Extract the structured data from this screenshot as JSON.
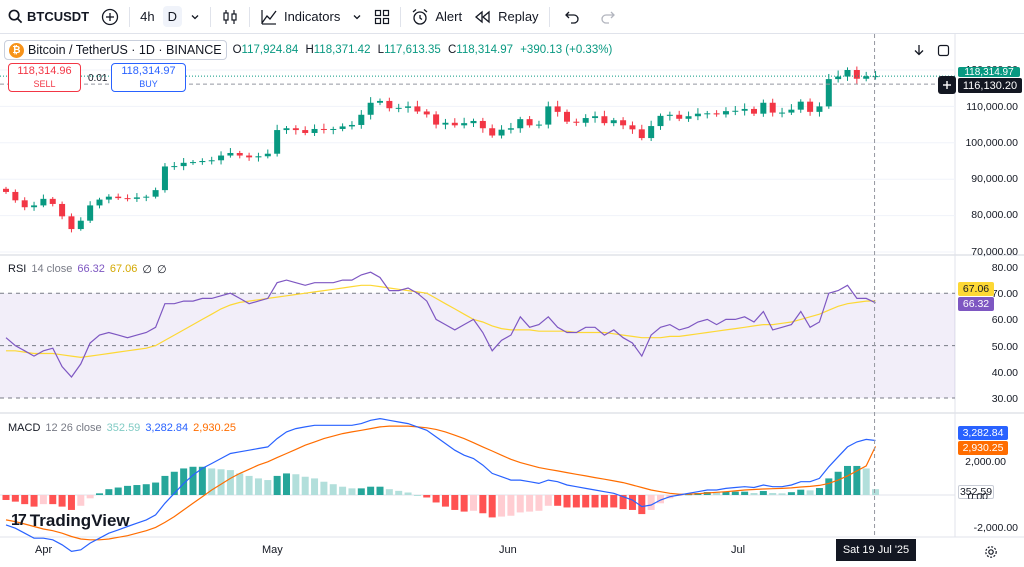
{
  "toolbar": {
    "symbol": "BTCUSDT",
    "interval": "4h",
    "interval_active": "D",
    "indicators_label": "Indicators",
    "alert_label": "Alert",
    "replay_label": "Replay"
  },
  "legend": {
    "title": "Bitcoin / TetherUS · 1D · BINANCE",
    "open_key": "O",
    "open": "117,924.84",
    "high_key": "H",
    "high": "118,371.42",
    "low_key": "L",
    "low": "117,613.35",
    "close_key": "C",
    "close": "118,314.97",
    "change": "+390.13 (+0.33%)"
  },
  "trade": {
    "sell_price": "118,314.96",
    "sell_label": "SELL",
    "spread": "0.01",
    "buy_price": "118,314.97",
    "buy_label": "BUY"
  },
  "price_axis": {
    "labels": [
      "120,000.00",
      "110,000.00",
      "100,000.00",
      "90,000.00",
      "80,000.00",
      "70,000.00"
    ],
    "current_price": "118,314.97",
    "crosshair_price": "116,130.20"
  },
  "rsi": {
    "label": "RSI",
    "params": "14 close",
    "value": "66.32",
    "ma_value": "67.06",
    "na1": "∅",
    "na2": "∅",
    "axis": [
      "80.00",
      "70.00",
      "60.00",
      "50.00",
      "40.00",
      "30.00"
    ]
  },
  "macd": {
    "label": "MACD",
    "params": "12 26 close",
    "histogram": "352.59",
    "macd_value": "3,282.84",
    "signal_value": "2,930.25",
    "axis": [
      "2,000.00",
      "0.00",
      "-2,000.00"
    ]
  },
  "time_axis": {
    "months": [
      "Apr",
      "May",
      "Jun",
      "Jul"
    ],
    "crosshair_date": "Sat 19 Jul '25"
  },
  "branding": {
    "name": "TradingView"
  },
  "colors": {
    "up": "#089981",
    "down": "#f23645",
    "rsi_line": "#7e57c2",
    "rsi_ma": "#fdd835",
    "macd_line": "#2962ff",
    "signal_line": "#ff6d00",
    "hist_up": "#26a69a",
    "hist_up_weak": "#b2dfdb",
    "hist_down": "#ff5252",
    "hist_down_weak": "#ffcdd2"
  },
  "chart_data": {
    "type": "candlestick",
    "closes": [
      86500,
      84200,
      82300,
      82800,
      84600,
      83200,
      79800,
      76300,
      78600,
      82800,
      84400,
      85200,
      84800,
      84600,
      85000,
      85200,
      87000,
      93500,
      93600,
      94500,
      94700,
      95000,
      95200,
      96500,
      97200,
      96500,
      96000,
      96300,
      97000,
      103500,
      104000,
      103500,
      102700,
      103800,
      103600,
      103800,
      104500,
      104900,
      107700,
      111000,
      111500,
      109500,
      109600,
      110000,
      108600,
      107800,
      105000,
      105500,
      104800,
      105400,
      106000,
      104000,
      102000,
      103600,
      104000,
      106500,
      104800,
      105000,
      110000,
      108500,
      105800,
      105500,
      106800,
      107300,
      105400,
      106200,
      104800,
      103700,
      101300,
      104600,
      107400,
      107700,
      106600,
      107300,
      108000,
      108100,
      107800,
      108700,
      108800,
      109300,
      108000,
      111000,
      108300,
      108300,
      109100,
      111300,
      108500,
      110000,
      117500,
      118200,
      120000,
      117600,
      118300,
      118315
    ],
    "rsi": [
      53,
      50,
      48,
      46,
      48,
      49,
      42,
      38,
      43,
      51,
      54,
      55,
      54,
      53,
      54,
      55,
      57,
      66,
      66,
      67,
      67,
      68,
      68,
      69,
      70,
      68,
      66,
      67,
      68,
      74,
      75,
      74,
      73,
      74,
      74,
      74,
      75,
      75,
      77,
      78,
      76,
      71,
      71,
      72,
      70,
      67,
      60,
      58,
      56,
      58,
      60,
      55,
      48,
      52,
      54,
      61,
      57,
      58,
      61,
      57,
      55,
      55,
      57,
      57,
      54,
      56,
      53,
      51,
      46,
      54,
      57,
      58,
      56,
      57,
      59,
      60,
      58,
      60,
      60,
      61,
      59,
      63,
      56,
      57,
      58,
      63,
      57,
      59,
      70,
      71,
      73,
      68,
      68,
      66.32
    ],
    "rsi_ma": [
      48,
      48,
      47.5,
      47,
      47,
      47,
      46.5,
      46,
      45.5,
      46,
      46.5,
      47,
      47.5,
      48,
      48.5,
      49,
      50,
      52,
      54,
      56,
      58,
      60,
      62,
      64,
      65.5,
      66.5,
      67,
      67.5,
      68,
      68.5,
      69,
      69.5,
      70,
      70.5,
      71,
      71.5,
      72,
      72.5,
      73,
      73,
      72.5,
      72,
      71.5,
      71,
      70.5,
      70,
      68,
      66,
      64,
      62,
      60,
      59,
      57.5,
      56.5,
      56,
      56,
      56,
      55.5,
      55.5,
      55.5,
      55.5,
      55,
      55,
      55,
      55,
      54.5,
      54,
      53.5,
      53,
      53,
      53,
      53.5,
      53.5,
      54,
      54.5,
      55,
      55.5,
      56,
      56.5,
      57,
      57.5,
      58,
      58,
      58.5,
      59,
      60,
      61,
      62,
      63.5,
      65,
      66,
      66.5,
      67,
      67.06
    ],
    "macd": [
      -1800,
      -2000,
      -2300,
      -2600,
      -2600,
      -2700,
      -3000,
      -3400,
      -3300,
      -2900,
      -2600,
      -2300,
      -2100,
      -1900,
      -1700,
      -1500,
      -1200,
      -500,
      100,
      700,
      1200,
      1600,
      1900,
      2200,
      2500,
      2600,
      2700,
      2800,
      2900,
      3400,
      3800,
      4000,
      4100,
      4200,
      4200,
      4200,
      4200,
      4200,
      4300,
      4500,
      4600,
      4500,
      4400,
      4300,
      4100,
      3900,
      3500,
      3100,
      2700,
      2400,
      2200,
      1800,
      1300,
      1100,
      900,
      900,
      800,
      700,
      900,
      800,
      600,
      500,
      400,
      300,
      200,
      100,
      -100,
      -300,
      -700,
      -600,
      -300,
      -100,
      0,
      100,
      200,
      300,
      300,
      400,
      450,
      500,
      450,
      600,
      500,
      500,
      600,
      800,
      800,
      1000,
      1700,
      2300,
      2900,
      3200,
      3350,
      3282.84
    ],
    "signal": [
      -1500,
      -1600,
      -1750,
      -1900,
      -2050,
      -2150,
      -2300,
      -2500,
      -2650,
      -2700,
      -2700,
      -2650,
      -2550,
      -2450,
      -2300,
      -2150,
      -1950,
      -1650,
      -1300,
      -900,
      -500,
      -100,
      300,
      650,
      1000,
      1300,
      1550,
      1800,
      2000,
      2250,
      2500,
      2750,
      3000,
      3200,
      3400,
      3550,
      3700,
      3800,
      3900,
      4000,
      4100,
      4150,
      4150,
      4150,
      4100,
      4050,
      3950,
      3800,
      3600,
      3400,
      3150,
      2900,
      2650,
      2400,
      2150,
      1950,
      1800,
      1650,
      1550,
      1450,
      1350,
      1250,
      1150,
      1050,
      950,
      850,
      750,
      600,
      450,
      300,
      200,
      100,
      50,
      50,
      80,
      120,
      160,
      200,
      250,
      300,
      330,
      360,
      380,
      400,
      430,
      480,
      520,
      580,
      700,
      900,
      1150,
      1450,
      1750,
      2930.25
    ]
  }
}
